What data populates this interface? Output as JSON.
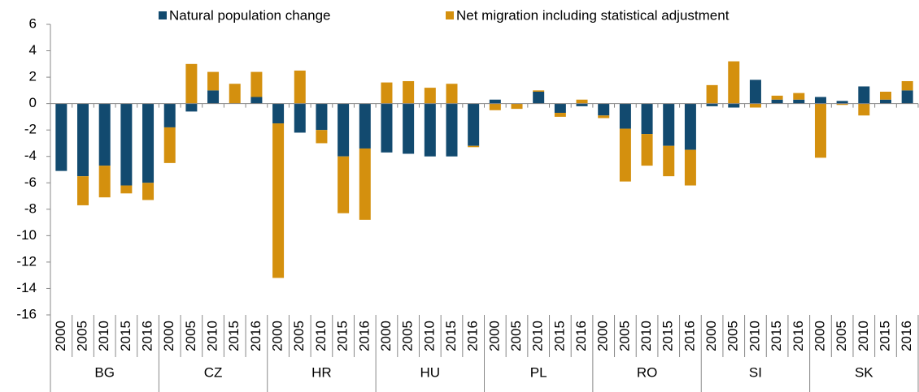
{
  "chart_data": {
    "type": "stacked_bar",
    "categories": [
      "2000",
      "2005",
      "2010",
      "2015",
      "2016",
      "2000",
      "2005",
      "2010",
      "2015",
      "2016",
      "2000",
      "2005",
      "2010",
      "2015",
      "2016",
      "2000",
      "2005",
      "2010",
      "2015",
      "2016",
      "2000",
      "2005",
      "2010",
      "2015",
      "2016",
      "2000",
      "2005",
      "2010",
      "2015",
      "2016",
      "2000",
      "2005",
      "2010",
      "2015",
      "2016",
      "2000",
      "2005",
      "2010",
      "2015",
      "2016"
    ],
    "groups": [
      "BG",
      "CZ",
      "HR",
      "HU",
      "PL",
      "RO",
      "SI",
      "SK"
    ],
    "series": [
      {
        "name": "Natural population change",
        "color": "#124a6f",
        "values": [
          -5.1,
          -5.5,
          -4.7,
          -6.2,
          -6.0,
          -1.8,
          -0.6,
          1.0,
          0.0,
          0.5,
          -1.5,
          -2.2,
          -2.0,
          -4.0,
          -3.4,
          -3.7,
          -3.8,
          -4.0,
          -4.0,
          -3.2,
          0.3,
          0.0,
          0.9,
          -0.7,
          -0.2,
          -0.9,
          -1.9,
          -2.3,
          -3.2,
          -3.5,
          -0.2,
          -0.3,
          1.8,
          0.3,
          0.3,
          0.5,
          0.2,
          1.3,
          0.3,
          1.0
        ]
      },
      {
        "name": "Net migration including statistical adjustment",
        "color": "#d4900e",
        "values": [
          0.0,
          -2.2,
          -2.4,
          -0.6,
          -1.3,
          -2.7,
          3.0,
          1.4,
          1.5,
          1.9,
          -11.7,
          2.5,
          -1.0,
          -4.3,
          -5.4,
          1.6,
          1.7,
          1.2,
          1.5,
          -0.1,
          -0.5,
          -0.4,
          0.1,
          -0.3,
          0.3,
          -0.2,
          -4.0,
          -2.4,
          -2.3,
          -2.7,
          1.4,
          3.2,
          -0.3,
          0.3,
          0.5,
          -4.1,
          -0.1,
          -0.9,
          0.6,
          0.7
        ]
      }
    ],
    "ylim": [
      -16,
      6
    ],
    "yticks": [
      -16,
      -14,
      -12,
      -10,
      -8,
      -6,
      -4,
      -2,
      0,
      2,
      4,
      6
    ],
    "grid": false
  }
}
